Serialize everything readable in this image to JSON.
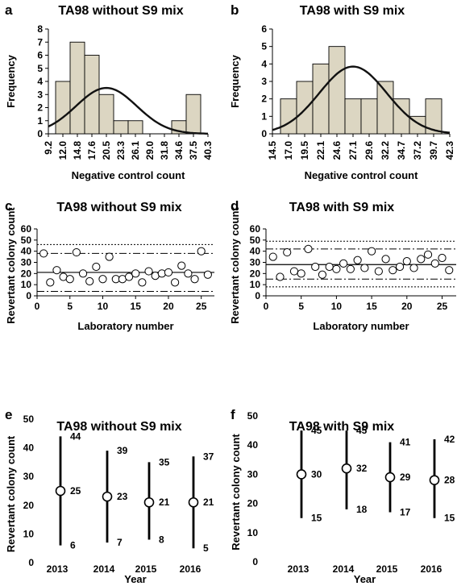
{
  "chart_data": [
    {
      "panel": "a",
      "type": "bar",
      "title": "TA98 without S9 mix",
      "xlabel": "Negative control count",
      "ylabel": "Frequency",
      "categories": [
        "9.2",
        "12.0",
        "14.8",
        "17.6",
        "20.5",
        "23.3",
        "26.1",
        "29.0",
        "31.8",
        "34.6",
        "37.5",
        "40.3"
      ],
      "values": [
        0,
        4,
        7,
        6,
        3,
        1,
        1,
        0,
        0,
        1,
        3,
        0
      ],
      "yticks": [
        0,
        1,
        2,
        3,
        4,
        5,
        6,
        7,
        8
      ],
      "ylim": [
        0,
        8
      ],
      "fit_curve": {
        "type": "normal",
        "peak_x": "20.5",
        "peak_y": 3.5
      },
      "bar_color": "#dcd6c2"
    },
    {
      "panel": "b",
      "type": "bar",
      "title": "TA98 with S9 mix",
      "xlabel": "Negative control count",
      "ylabel": "Frequency",
      "categories": [
        "14.5",
        "17.0",
        "19.5",
        "22.1",
        "24.6",
        "27.1",
        "29.6",
        "32.2",
        "34.7",
        "37.2",
        "39.7",
        "42.3"
      ],
      "values": [
        0,
        2,
        3,
        4,
        5,
        2,
        2,
        3,
        2,
        1,
        2,
        0
      ],
      "yticks": [
        0,
        1,
        2,
        3,
        4,
        5,
        6
      ],
      "ylim": [
        0,
        6
      ],
      "fit_curve": {
        "type": "normal",
        "peak_x": "27.1",
        "peak_y": 3.85
      },
      "bar_color": "#dcd6c2"
    },
    {
      "panel": "c",
      "type": "scatter",
      "title": "TA98 without S9 mix",
      "xlabel": "Laboratory number",
      "ylabel": "Revertant colony count",
      "xlim": [
        0,
        27
      ],
      "ylim": [
        0,
        60
      ],
      "xticks": [
        0,
        5,
        10,
        15,
        20,
        25
      ],
      "yticks": [
        0,
        10,
        20,
        30,
        40,
        50,
        60
      ],
      "x": [
        1,
        2,
        3,
        4,
        5,
        6,
        7,
        8,
        9,
        10,
        11,
        12,
        13,
        14,
        15,
        16,
        17,
        18,
        19,
        20,
        21,
        22,
        23,
        24,
        25,
        26
      ],
      "y": [
        38,
        12,
        23,
        17,
        15,
        39,
        20,
        13,
        26,
        15,
        35,
        15,
        15,
        17,
        20,
        12,
        22,
        18,
        20,
        21,
        12,
        27,
        20,
        15,
        40,
        19
      ],
      "ref_lines": {
        "mean": 21,
        "dashdot": [
          4,
          38
        ],
        "dotted": [
          46
        ]
      }
    },
    {
      "panel": "d",
      "type": "scatter",
      "title": "TA98 with S9 mix",
      "xlabel": "Laboratory number",
      "ylabel": "Revertant colony count",
      "xlim": [
        0,
        27
      ],
      "ylim": [
        0,
        60
      ],
      "xticks": [
        0,
        5,
        10,
        15,
        20,
        25
      ],
      "yticks": [
        0,
        10,
        20,
        30,
        40,
        50,
        60
      ],
      "x": [
        1,
        2,
        3,
        4,
        5,
        6,
        7,
        8,
        9,
        10,
        11,
        12,
        13,
        14,
        15,
        16,
        17,
        18,
        19,
        20,
        21,
        22,
        23,
        24,
        25,
        26
      ],
      "y": [
        35,
        17,
        39,
        22,
        20,
        42,
        26,
        19,
        26,
        24,
        29,
        24,
        32,
        25,
        40,
        22,
        33,
        23,
        26,
        31,
        25,
        33,
        37,
        29,
        34,
        23
      ],
      "ref_lines": {
        "mean": 28,
        "dashdot": [
          15,
          42
        ],
        "dotted": [
          8,
          49
        ]
      }
    },
    {
      "panel": "e",
      "type": "scatter",
      "title": "TA98 without S9 mix",
      "xlabel": "Year",
      "ylabel": "Revertant colony count",
      "categories": [
        "2013",
        "2014",
        "2015",
        "2016"
      ],
      "mean": [
        25,
        23,
        21,
        21
      ],
      "upper": [
        44,
        39,
        35,
        37
      ],
      "lower": [
        6,
        7,
        8,
        5
      ],
      "ylim": [
        0,
        50
      ],
      "yticks": [
        0,
        10,
        20,
        30,
        40,
        50
      ]
    },
    {
      "panel": "f",
      "type": "scatter",
      "title": "TA98 with S9 mix",
      "xlabel": "Year",
      "ylabel": "Revertant colony count",
      "categories": [
        "2013",
        "2014",
        "2015",
        "2016"
      ],
      "mean": [
        30,
        32,
        29,
        28
      ],
      "upper": [
        45,
        45,
        41,
        42
      ],
      "lower": [
        15,
        18,
        17,
        15
      ],
      "ylim": [
        0,
        50
      ],
      "yticks": [
        0,
        10,
        20,
        30,
        40,
        50
      ]
    }
  ]
}
